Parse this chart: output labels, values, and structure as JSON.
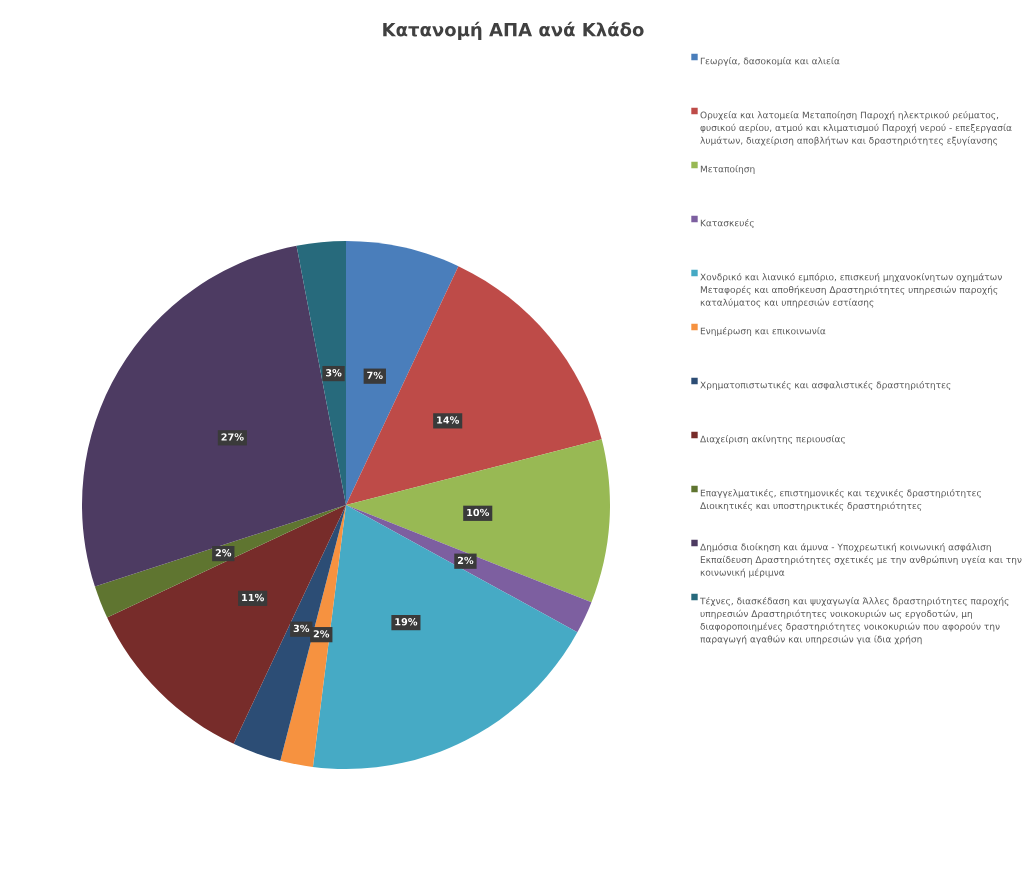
{
  "chart_data": {
    "type": "pie",
    "title": "Κατανομή ΑΠΑ ανά Κλάδο",
    "categories": [
      "Γεωργία, δασοκομία και αλιεία",
      "Ορυχεία και λατομεία Μεταποίηση Παροχή ηλεκτρικού ρεύματος, φυσικού αερίου, ατμού και κλιματισμού Παροχή νερού - επεξεργασία λυμάτων, διαχείριση αποβλήτων και δραστηριότητες εξυγίανσης",
      "Μεταποίηση",
      "Κατασκευές",
      "Χονδρικό και λιανικό εμπόριο, επισκευή μηχανοκίνητων οχημάτων Μεταφορές και αποθήκευση Δραστηριότητες υπηρεσιών παροχής καταλύματος και υπηρεσιών εστίασης",
      "Ενημέρωση και επικοινωνία",
      "Χρηματοπιστωτικές και ασφαλιστικές δραστηριότητες",
      "Διαχείριση ακίνητης περιουσίας",
      "Επαγγελματικές, επιστημονικές και τεχνικές δραστηριότητες Διοικητικές και υποστηρικτικές δραστηριότητες",
      "Δημόσια διοίκηση και άμυνα - Υποχρεωτική κοινωνική ασφάλιση Εκπαίδευση Δραστηριότητες σχετικές με την ανθρώπινη υγεία και την κοινωνική μέριμνα",
      "Τέχνες, διασκέδαση και ψυχαγωγία Άλλες δραστηριότητες παροχής υπηρεσιών Δραστηριότητες νοικοκυριών ως εργοδοτών, μη διαφοροποιημένες δραστηριότητες νοικοκυριών που αφορούν την παραγωγή αγαθών και υπηρεσιών για ίδια χρήση"
    ],
    "values": [
      7,
      14,
      10,
      2,
      19,
      2,
      3,
      11,
      2,
      27,
      3
    ],
    "value_labels": [
      "7%",
      "14%",
      "10%",
      "2%",
      "19%",
      "2%",
      "3%",
      "11%",
      "2%",
      "27%",
      "3%"
    ],
    "colors": [
      "#4a7ebb",
      "#be4b48",
      "#98b954",
      "#7d5fa0",
      "#46aac5",
      "#f69240",
      "#2c4d75",
      "#772c2a",
      "#5f7530",
      "#4d3b62",
      "#276a7c"
    ],
    "legend": "right"
  }
}
